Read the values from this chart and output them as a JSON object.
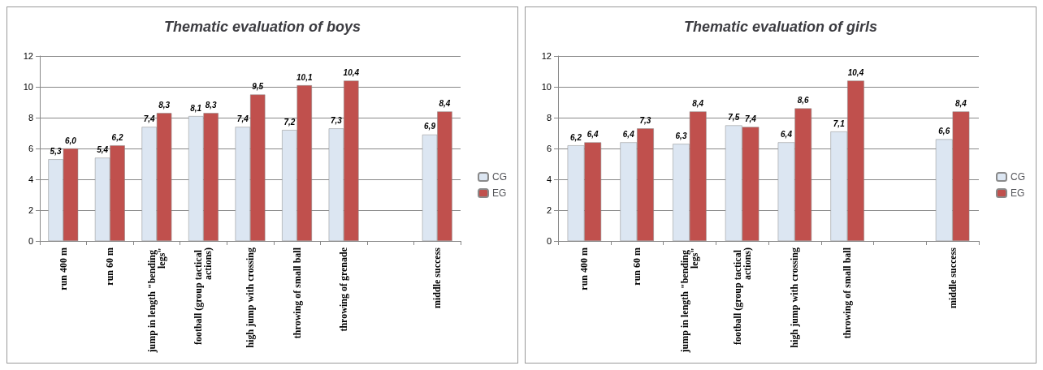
{
  "chart_data": [
    {
      "type": "bar",
      "title": "Thematic evaluation of boys",
      "categories": [
        "run 400 m",
        "run 60 m",
        "jump in length \"bending legs\"",
        "football (group tactical actions)",
        "high jump with crossing",
        "throwing of small ball",
        "throwing of grenade",
        null,
        "middle success"
      ],
      "series": [
        {
          "name": "CG",
          "color": "#dce6f2",
          "values": [
            5.3,
            5.4,
            7.4,
            8.1,
            7.4,
            7.2,
            7.3,
            null,
            6.9
          ],
          "value_labels": [
            "5,3",
            "5,4",
            "7,4",
            "8,1",
            "7,4",
            "7,2",
            "7,3",
            null,
            "6,9"
          ]
        },
        {
          "name": "EG",
          "color": "#c0504d",
          "values": [
            6.0,
            6.2,
            8.3,
            8.3,
            9.5,
            10.1,
            10.4,
            null,
            8.4
          ],
          "value_labels": [
            "6,0",
            "6,2",
            "8,3",
            "8,3",
            "9,5",
            "10,1",
            "10,4",
            null,
            "8,4"
          ]
        }
      ],
      "ylim": [
        0,
        12
      ],
      "yticks": [
        0,
        2,
        4,
        6,
        8,
        10,
        12
      ],
      "grid": "y",
      "legend": "right"
    },
    {
      "type": "bar",
      "title": "Thematic evaluation of girls",
      "categories": [
        "run 400 m",
        "run 60 m",
        "jump in length \"bending legs\"",
        "football (group tactical actions)",
        "high jump with crossing",
        "throwing of small ball",
        null,
        "middle success"
      ],
      "series": [
        {
          "name": "CG",
          "color": "#dce6f2",
          "values": [
            6.2,
            6.4,
            6.3,
            7.5,
            6.4,
            7.1,
            null,
            6.6
          ],
          "value_labels": [
            "6,2",
            "6,4",
            "6,3",
            "7,5",
            "6,4",
            "7,1",
            null,
            "6,6"
          ]
        },
        {
          "name": "EG",
          "color": "#c0504d",
          "values": [
            6.4,
            7.3,
            8.4,
            7.4,
            8.6,
            10.4,
            null,
            8.4
          ],
          "value_labels": [
            "6,4",
            "7,3",
            "8,4",
            "7,4",
            "8,6",
            "10,4",
            null,
            "8,4"
          ]
        }
      ],
      "ylim": [
        0,
        12
      ],
      "yticks": [
        0,
        2,
        4,
        6,
        8,
        10,
        12
      ],
      "grid": "y",
      "legend": "right"
    }
  ]
}
